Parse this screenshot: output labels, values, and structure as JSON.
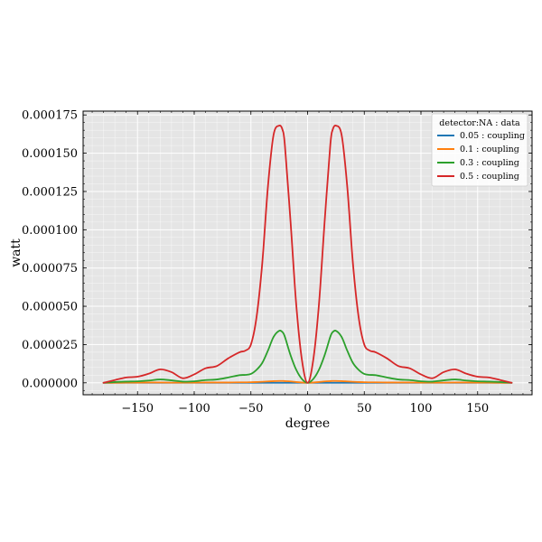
{
  "chart_data": {
    "type": "line",
    "title": "",
    "xlabel": "degree",
    "ylabel": "watt",
    "xlim": [
      -198,
      198
    ],
    "ylim": [
      -7.8e-06,
      0.0001775
    ],
    "grid": true,
    "legend_position": "top-right",
    "legend_title": "detector:NA : data",
    "x_ticks": [
      -150,
      -100,
      -50,
      0,
      50,
      100,
      150
    ],
    "x_tick_labels": [
      "−150",
      "−100",
      "−50",
      "0",
      "50",
      "100",
      "150"
    ],
    "y_ticks": [
      0,
      2.5e-05,
      5e-05,
      7.5e-05,
      0.0001,
      0.000125,
      0.00015,
      0.000175
    ],
    "y_tick_labels": [
      "0.000000",
      "0.000025",
      "0.000050",
      "0.000075",
      "0.000100",
      "0.000125",
      "0.000150",
      "0.000175"
    ],
    "x": [
      -180,
      -170,
      -160,
      -150,
      -140,
      -130,
      -120,
      -110,
      -100,
      -90,
      -80,
      -70,
      -60,
      -55,
      -50,
      -45,
      -40,
      -35,
      -30,
      -25,
      -22,
      -20,
      -15,
      -10,
      -5,
      0,
      5,
      10,
      15,
      20,
      22,
      25,
      30,
      35,
      40,
      45,
      50,
      55,
      60,
      70,
      80,
      90,
      100,
      110,
      120,
      130,
      140,
      150,
      160,
      170,
      180
    ],
    "series": [
      {
        "name": "0.05 : coupling",
        "color": "#1f77b4",
        "values": [
          0,
          0,
          0,
          0,
          0,
          0,
          0,
          0,
          0,
          0,
          0,
          0,
          0,
          0,
          0,
          0,
          0,
          0,
          0,
          0,
          0,
          0,
          0,
          0,
          0,
          0,
          0,
          0,
          0,
          0,
          0,
          0,
          0,
          0,
          0,
          0,
          0,
          0,
          0,
          0,
          0,
          0,
          0,
          0,
          0,
          0,
          0,
          0,
          0,
          0,
          0
        ]
      },
      {
        "name": "0.1 : coupling",
        "color": "#ff7f0e",
        "values": [
          0,
          0,
          1e-07,
          1e-07,
          2e-07,
          2e-07,
          1e-07,
          1e-07,
          1e-07,
          2e-07,
          2e-07,
          2e-07,
          3e-07,
          3e-07,
          4e-07,
          5e-07,
          7e-07,
          9e-07,
          1.1e-06,
          1.2e-06,
          1.2e-06,
          1.1e-06,
          9e-07,
          5e-07,
          2e-07,
          0,
          2e-07,
          5e-07,
          9e-07,
          1.1e-06,
          1.2e-06,
          1.2e-06,
          1.1e-06,
          9e-07,
          7e-07,
          5e-07,
          4e-07,
          3e-07,
          3e-07,
          2e-07,
          2e-07,
          2e-07,
          1e-07,
          1e-07,
          1e-07,
          2e-07,
          2e-07,
          1e-07,
          1e-07,
          0,
          0
        ]
      },
      {
        "name": "0.3 : coupling",
        "color": "#2ca02c",
        "values": [
          0,
          5e-07,
          8e-07,
          1e-06,
          1.5e-06,
          2.2e-06,
          1.6e-06,
          8e-07,
          1e-06,
          1.8e-06,
          2.2e-06,
          3.5e-06,
          5e-06,
          5.2e-06,
          5.8e-06,
          8.5e-06,
          1.3e-05,
          2.1e-05,
          3e-05,
          3.4e-05,
          3.3e-05,
          3e-05,
          1.8e-05,
          8.5e-06,
          2.5e-06,
          0,
          2.5e-06,
          8.5e-06,
          1.8e-05,
          3e-05,
          3.3e-05,
          3.4e-05,
          3e-05,
          2.1e-05,
          1.3e-05,
          8.5e-06,
          5.8e-06,
          5.2e-06,
          5e-06,
          3.5e-06,
          2.2e-06,
          1.8e-06,
          1e-06,
          8e-07,
          1.6e-06,
          2.2e-06,
          1.5e-06,
          1e-06,
          8e-07,
          5e-07,
          0
        ]
      },
      {
        "name": "0.5 : coupling",
        "color": "#d62728",
        "values": [
          0,
          1.8e-06,
          3.5e-06,
          4e-06,
          6e-06,
          8.8e-06,
          7e-06,
          3e-06,
          5.5e-06,
          9.5e-06,
          1.1e-05,
          1.6e-05,
          2e-05,
          2.1e-05,
          2.5e-05,
          4.3e-05,
          7.8e-05,
          0.000128,
          0.000162,
          0.000168,
          0.000165,
          0.000155,
          0.000105,
          5.1e-05,
          1.5e-05,
          0,
          1.5e-05,
          5.1e-05,
          0.000105,
          0.000155,
          0.000165,
          0.000168,
          0.000162,
          0.000128,
          7.8e-05,
          4.3e-05,
          2.5e-05,
          2.1e-05,
          2e-05,
          1.6e-05,
          1.1e-05,
          9.5e-06,
          5.5e-06,
          3e-06,
          7e-06,
          8.8e-06,
          6e-06,
          4e-06,
          3.5e-06,
          1.8e-06,
          0
        ]
      }
    ]
  }
}
